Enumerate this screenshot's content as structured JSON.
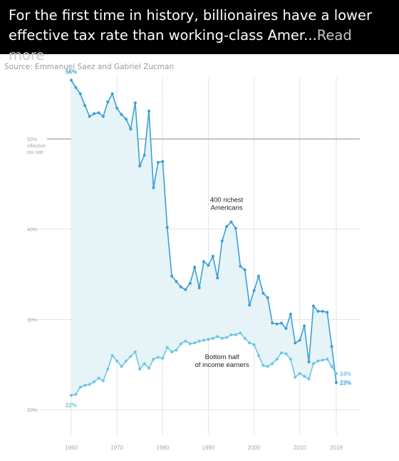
{
  "caption": {
    "text": "For the first time in history, billionaires have a lower effective tax rate than working-class Amer...",
    "read_more": "Read more"
  },
  "source": "Source: Emmanuel Saez and Gabriel Zucman",
  "colors": {
    "richest": "#3a9fd6",
    "bottom": "#6cc7e3",
    "fill": "#e6f3f7",
    "grid": "#e3e3e3",
    "reference": "#8a8a8a",
    "axis_text": "#a8a8a8",
    "value_label": "#3a9fd6"
  },
  "chart_data": {
    "type": "line",
    "xlim": [
      1960,
      2018
    ],
    "ylim": [
      20,
      56
    ],
    "x_ticks": [
      1960,
      1970,
      1980,
      1990,
      2000,
      2010,
      2018
    ],
    "x_tick_labels": [
      "1960",
      "1970",
      "1980",
      "1990",
      "2000",
      "2010",
      "2018"
    ],
    "y_ticks": [
      {
        "value": 50,
        "lines": [
          "50%",
          "effective",
          "tax rate"
        ]
      },
      {
        "value": 40,
        "lines": [
          "40%"
        ]
      },
      {
        "value": 30,
        "lines": [
          "30%"
        ]
      },
      {
        "value": 20,
        "lines": [
          "20%"
        ]
      }
    ],
    "reference_line": 50,
    "series": [
      {
        "name": "400 richest Americans",
        "label_lines": [
          "400 richest",
          "Americans"
        ],
        "label_at": {
          "x": 1994,
          "y": 43.0
        },
        "start_label": "56%",
        "end_label": "23%",
        "x": [
          1960,
          1961,
          1962,
          1963,
          1964,
          1965,
          1966,
          1967,
          1968,
          1969,
          1970,
          1971,
          1972,
          1973,
          1974,
          1975,
          1976,
          1977,
          1978,
          1979,
          1980,
          1981,
          1982,
          1983,
          1984,
          1985,
          1986,
          1987,
          1988,
          1989,
          1990,
          1991,
          1992,
          1993,
          1994,
          1995,
          1996,
          1997,
          1998,
          1999,
          2000,
          2001,
          2002,
          2003,
          2004,
          2005,
          2006,
          2007,
          2008,
          2009,
          2010,
          2011,
          2012,
          2013,
          2014,
          2015,
          2016,
          2017,
          2018
        ],
        "values": [
          56.5,
          55.7,
          55.0,
          53.7,
          52.5,
          52.8,
          52.9,
          52.5,
          54.1,
          55.0,
          53.4,
          52.7,
          52.2,
          51.1,
          54.0,
          47.0,
          48.2,
          53.1,
          44.6,
          47.4,
          47.5,
          40.2,
          34.8,
          34.2,
          33.6,
          33.3,
          34.0,
          35.8,
          33.5,
          36.4,
          36.0,
          37.0,
          34.6,
          38.7,
          40.3,
          40.8,
          40.1,
          35.9,
          35.5,
          31.6,
          33.2,
          34.8,
          32.9,
          32.4,
          29.6,
          29.5,
          29.6,
          29.0,
          30.6,
          27.4,
          27.7,
          29.3,
          25.3,
          31.5,
          30.9,
          30.9,
          30.8,
          27.0,
          23.0
        ]
      },
      {
        "name": "Bottom half of income earners",
        "label_lines": [
          "Bottom half",
          "of income earners"
        ],
        "label_at": {
          "x": 1993,
          "y": 25.6
        },
        "start_label": "22%",
        "end_label": "24%",
        "x": [
          1960,
          1961,
          1962,
          1963,
          1964,
          1965,
          1966,
          1967,
          1968,
          1969,
          1970,
          1971,
          1972,
          1973,
          1974,
          1975,
          1976,
          1977,
          1978,
          1979,
          1980,
          1981,
          1982,
          1983,
          1984,
          1985,
          1986,
          1987,
          1988,
          1989,
          1990,
          1991,
          1992,
          1993,
          1994,
          1995,
          1996,
          1997,
          1998,
          1999,
          2000,
          2001,
          2002,
          2003,
          2004,
          2005,
          2006,
          2007,
          2008,
          2009,
          2010,
          2011,
          2012,
          2013,
          2014,
          2015,
          2016,
          2017,
          2018
        ],
        "values": [
          21.6,
          21.7,
          22.5,
          22.7,
          22.8,
          23.1,
          23.5,
          23.2,
          24.5,
          26.0,
          25.4,
          24.8,
          25.4,
          25.9,
          26.4,
          24.5,
          25.1,
          24.6,
          25.6,
          25.8,
          25.7,
          26.9,
          26.4,
          26.6,
          27.3,
          27.6,
          27.3,
          27.4,
          27.6,
          27.7,
          27.8,
          27.9,
          28.1,
          27.9,
          28.0,
          28.3,
          28.3,
          28.5,
          27.9,
          27.4,
          27.2,
          26.0,
          24.9,
          24.8,
          25.1,
          25.6,
          26.3,
          26.2,
          25.6,
          23.6,
          24.0,
          23.7,
          23.4,
          25.1,
          25.4,
          25.5,
          25.6,
          24.8,
          24.0
        ]
      }
    ],
    "grid": true
  }
}
